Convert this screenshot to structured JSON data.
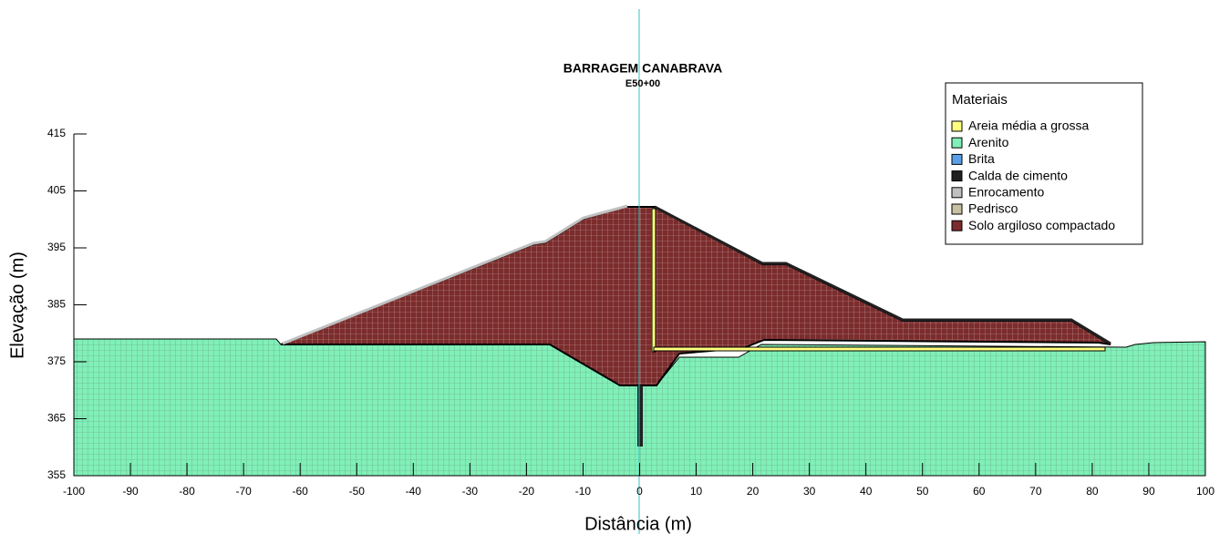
{
  "chart_data": {
    "type": "section",
    "title": "BARRAGEM CANABRAVA",
    "subtitle": "E50+00",
    "x_label": "Distância (m)",
    "y_label": "Elevação (m)",
    "xlim": [
      -100,
      100
    ],
    "ylim": [
      355,
      415
    ],
    "xticks": [
      -100,
      -90,
      -80,
      -70,
      -60,
      -50,
      -40,
      -30,
      -20,
      -10,
      0,
      10,
      20,
      30,
      40,
      50,
      60,
      70,
      80,
      90,
      100
    ],
    "yticks": [
      355,
      365,
      375,
      385,
      395,
      405,
      415
    ],
    "legend": {
      "title": "Materiais",
      "position": "upper right",
      "items": [
        {
          "name": "Areia média a grossa",
          "color": "#ffff80"
        },
        {
          "name": "Arenito",
          "color": "#80f0b8"
        },
        {
          "name": "Brita",
          "color": "#5aa0e8"
        },
        {
          "name": "Calda de cimento",
          "color": "#202020"
        },
        {
          "name": "Enrocamento",
          "color": "#c0c0c0"
        },
        {
          "name": "Pedrisco",
          "color": "#c8c0a0"
        },
        {
          "name": "Solo argiloso compactado",
          "color": "#7b2c2c"
        }
      ]
    }
  }
}
